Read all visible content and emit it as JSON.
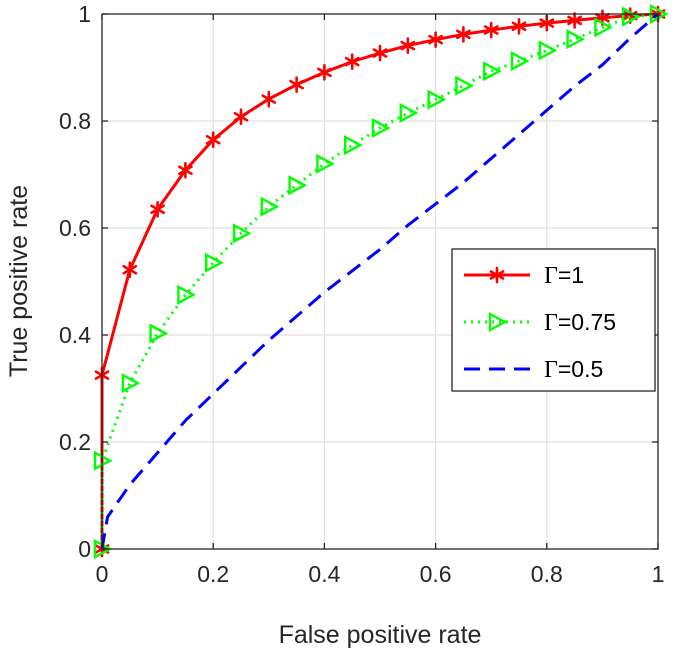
{
  "chart_data": {
    "type": "line",
    "title": "",
    "xlabel": "False positive rate",
    "ylabel": "True positive rate",
    "xlim": [
      0,
      1
    ],
    "ylim": [
      0,
      1
    ],
    "xticks": [
      0,
      0.2,
      0.4,
      0.6,
      0.8,
      1
    ],
    "yticks": [
      0,
      0.2,
      0.4,
      0.6,
      0.8,
      1
    ],
    "xtick_labels": [
      "0",
      "0.2",
      "0.4",
      "0.6",
      "0.8",
      "1"
    ],
    "ytick_labels": [
      "0",
      "0.2",
      "0.4",
      "0.6",
      "0.8",
      "1"
    ],
    "grid": true,
    "legend_position": "center-right",
    "series": [
      {
        "name": "Γ=1",
        "color": "#ff0000",
        "line_style": "solid",
        "marker": "asterisk",
        "x": [
          0,
          0,
          0.05,
          0.1,
          0.15,
          0.2,
          0.25,
          0.3,
          0.35,
          0.4,
          0.45,
          0.5,
          0.55,
          0.6,
          0.65,
          0.7,
          0.75,
          0.8,
          0.85,
          0.9,
          0.95,
          1
        ],
        "y": [
          0,
          0.325,
          0.522,
          0.635,
          0.708,
          0.765,
          0.808,
          0.841,
          0.868,
          0.891,
          0.911,
          0.927,
          0.941,
          0.952,
          0.962,
          0.97,
          0.977,
          0.983,
          0.988,
          0.993,
          0.997,
          1
        ]
      },
      {
        "name": "Γ=0.75",
        "color": "#00ff00",
        "line_style": "dotted",
        "marker": "triangle-right",
        "x": [
          0,
          0,
          0.05,
          0.1,
          0.15,
          0.2,
          0.25,
          0.3,
          0.35,
          0.4,
          0.45,
          0.5,
          0.55,
          0.6,
          0.65,
          0.7,
          0.75,
          0.8,
          0.85,
          0.9,
          0.95,
          1
        ],
        "y": [
          0,
          0.165,
          0.31,
          0.403,
          0.475,
          0.535,
          0.59,
          0.64,
          0.68,
          0.72,
          0.755,
          0.787,
          0.815,
          0.84,
          0.866,
          0.893,
          0.912,
          0.932,
          0.953,
          0.975,
          0.995,
          1
        ]
      },
      {
        "name": "Γ=0.5",
        "color": "#0000ff",
        "line_style": "dashed",
        "marker": "none",
        "x": [
          0,
          0.01,
          0.05,
          0.1,
          0.15,
          0.2,
          0.25,
          0.3,
          0.35,
          0.4,
          0.45,
          0.5,
          0.55,
          0.6,
          0.65,
          0.7,
          0.75,
          0.8,
          0.85,
          0.9,
          0.95,
          1
        ],
        "y": [
          0,
          0.06,
          0.12,
          0.18,
          0.24,
          0.29,
          0.34,
          0.39,
          0.435,
          0.48,
          0.52,
          0.56,
          0.605,
          0.645,
          0.685,
          0.73,
          0.775,
          0.82,
          0.865,
          0.905,
          0.955,
          1
        ]
      }
    ]
  }
}
